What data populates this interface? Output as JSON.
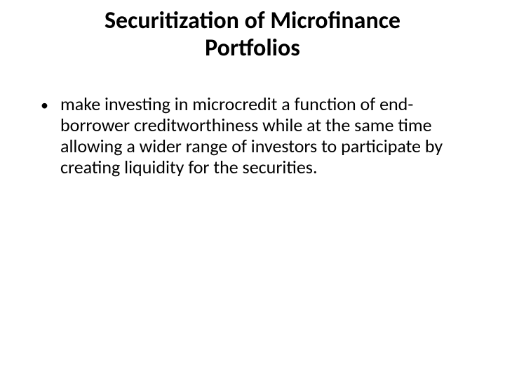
{
  "slide": {
    "title": "Securitization of Microfinance Portfolios",
    "bullets": [
      {
        "text": "make investing in microcredit a function of end-borrower creditworthiness while at the same time allowing a wider range of investors to participate by creating liquidity for the securities."
      }
    ]
  },
  "styles": {
    "background_color": "#ffffff",
    "text_color": "#000000",
    "title_fontsize": 34,
    "body_fontsize": 26,
    "font_family": "Calibri"
  }
}
